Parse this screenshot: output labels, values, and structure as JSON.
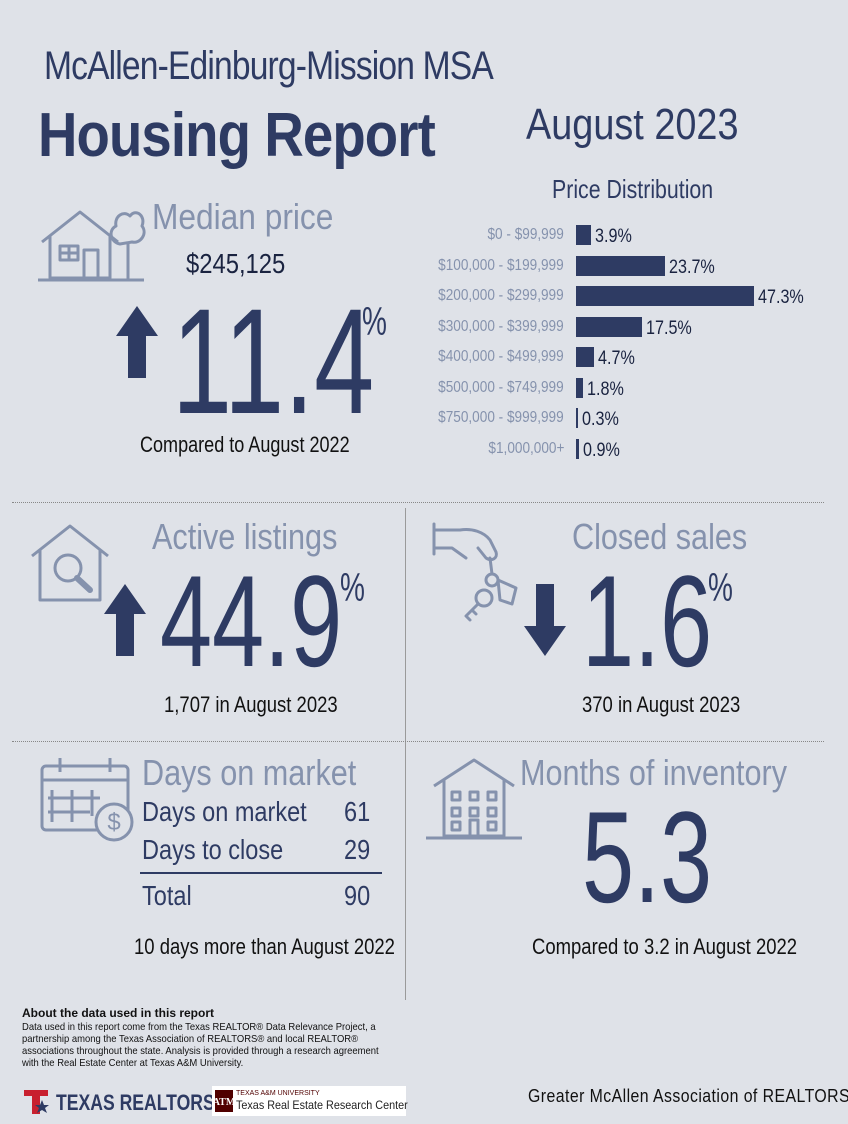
{
  "header": {
    "msa": "McAllen-Edinburg-Mission MSA",
    "title": "Housing Report",
    "date": "August 2023"
  },
  "median_price": {
    "label": "Median price",
    "value": "$245,125",
    "change": "11.4",
    "percent_sign": "%",
    "direction": "up",
    "compare": "Compared to August 2022"
  },
  "price_distribution": {
    "title": "Price Distribution",
    "rows": [
      {
        "range": "$0 - $99,999",
        "pct_label": "3.9%",
        "pct": 3.9
      },
      {
        "range": "$100,000 - $199,999",
        "pct_label": "23.7%",
        "pct": 23.7
      },
      {
        "range": "$200,000 - $299,999",
        "pct_label": "47.3%",
        "pct": 47.3
      },
      {
        "range": "$300,000 - $399,999",
        "pct_label": "17.5%",
        "pct": 17.5
      },
      {
        "range": "$400,000 - $499,999",
        "pct_label": "4.7%",
        "pct": 4.7
      },
      {
        "range": "$500,000 - $749,999",
        "pct_label": "1.8%",
        "pct": 1.8
      },
      {
        "range": "$750,000 - $999,999",
        "pct_label": "0.3%",
        "pct": 0.3
      },
      {
        "range": "$1,000,000+",
        "pct_label": "0.9%",
        "pct": 0.9
      }
    ]
  },
  "active_listings": {
    "label": "Active listings",
    "change": "44.9",
    "percent_sign": "%",
    "direction": "up",
    "sub": "1,707 in August 2023"
  },
  "closed_sales": {
    "label": "Closed sales",
    "change": "1.6",
    "percent_sign": "%",
    "direction": "down",
    "sub": "370 in August 2023"
  },
  "days_on_market": {
    "label": "Days on market",
    "rows": [
      {
        "label": "Days on market",
        "value": "61"
      },
      {
        "label": "Days to close",
        "value": "29"
      }
    ],
    "total_label": "Total",
    "total_value": "90",
    "compare": "10 days more than August 2022"
  },
  "months_inventory": {
    "label": "Months of inventory",
    "value": "5.3",
    "compare": "Compared to 3.2 in August 2022"
  },
  "footer": {
    "about_title": "About the data used in this report",
    "about_body": "Data used in this report come from the Texas REALTOR® Data Relevance Project, a partnership among the Texas Association of REALTORS® and local REALTOR® associations throughout the state. Analysis is provided through a research agreement with the Real Estate Center at Texas A&M University.",
    "texas_realtors": "TEXAS REALTORS",
    "tamu_small": "TEXAS A&M UNIVERSITY",
    "tamu_name": "Texas Real Estate Research Center",
    "association": "Greater McAllen Association of REALTORS®"
  },
  "colors": {
    "navy": "#2e3b63",
    "muted": "#8592ad",
    "background": "#dfe2e8",
    "brand_red": "#c8202f"
  },
  "icons": [
    "house-tree-icon",
    "house-search-icon",
    "hand-key-icon",
    "calendar-dollar-icon",
    "apartment-building-icon",
    "arrow-up-icon",
    "arrow-down-icon",
    "texas-star-logo-icon",
    "tamu-logo-icon"
  ]
}
